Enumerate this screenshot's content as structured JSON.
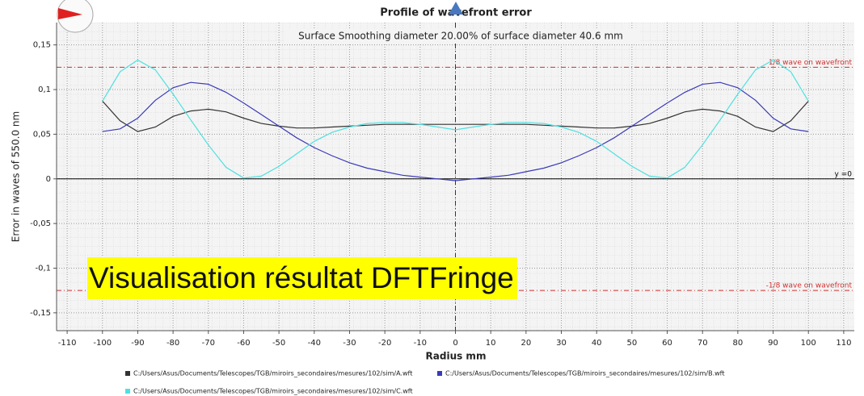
{
  "chart_data": {
    "type": "line",
    "title": "Profile of wavefront error",
    "subtitle": "Surface Smoothing diameter  20.00% of surface diameter   40.6 mm",
    "x_label": "Radius mm",
    "y_label": "Error in waves of  550.0 nm",
    "overlay_text": "Visualisation résultat DFTFringe",
    "x": [
      -100,
      -95,
      -90,
      -85,
      -80,
      -75,
      -70,
      -65,
      -60,
      -55,
      -50,
      -45,
      -40,
      -35,
      -30,
      -25,
      -20,
      -15,
      -10,
      -5,
      0,
      5,
      10,
      15,
      20,
      25,
      30,
      35,
      40,
      45,
      50,
      55,
      60,
      65,
      70,
      75,
      80,
      85,
      90,
      95,
      100
    ],
    "series": [
      {
        "name": "C:/Users/Asus/Documents/Telescopes/TGB/miroirs_secondaires/mesures/102/sim/A.wft",
        "color": "#333333",
        "values": [
          0.087,
          0.065,
          0.053,
          0.058,
          0.07,
          0.076,
          0.078,
          0.075,
          0.068,
          0.062,
          0.059,
          0.057,
          0.057,
          0.058,
          0.059,
          0.06,
          0.061,
          0.061,
          0.061,
          0.061,
          0.061,
          0.061,
          0.061,
          0.061,
          0.061,
          0.06,
          0.059,
          0.058,
          0.057,
          0.057,
          0.059,
          0.062,
          0.068,
          0.075,
          0.078,
          0.076,
          0.07,
          0.058,
          0.053,
          0.065,
          0.087
        ]
      },
      {
        "name": "C:/Users/Asus/Documents/Telescopes/TGB/miroirs_secondaires/mesures/102/sim/B.wft",
        "color": "#3a3ab8",
        "values": [
          0.053,
          0.056,
          0.068,
          0.088,
          0.102,
          0.108,
          0.106,
          0.097,
          0.085,
          0.072,
          0.059,
          0.046,
          0.035,
          0.026,
          0.018,
          0.012,
          0.008,
          0.004,
          0.002,
          0.0,
          -0.002,
          0.0,
          0.002,
          0.004,
          0.008,
          0.012,
          0.018,
          0.026,
          0.035,
          0.046,
          0.059,
          0.072,
          0.085,
          0.097,
          0.106,
          0.108,
          0.102,
          0.088,
          0.068,
          0.056,
          0.053
        ]
      },
      {
        "name": "C:/Users/Asus/Documents/Telescopes/TGB/miroirs_secondaires/mesures/102/sim/C.wft",
        "color": "#4fe0e0",
        "values": [
          0.087,
          0.12,
          0.133,
          0.122,
          0.095,
          0.066,
          0.038,
          0.013,
          0.001,
          0.003,
          0.014,
          0.028,
          0.042,
          0.052,
          0.058,
          0.062,
          0.063,
          0.063,
          0.061,
          0.058,
          0.055,
          0.058,
          0.061,
          0.063,
          0.063,
          0.062,
          0.058,
          0.052,
          0.042,
          0.028,
          0.014,
          0.003,
          0.001,
          0.013,
          0.038,
          0.066,
          0.095,
          0.122,
          0.133,
          0.12,
          0.087
        ]
      }
    ],
    "reference_lines": [
      {
        "value": 0.125,
        "label": "1/8 wave on wavefront",
        "color": "#d03030"
      },
      {
        "value": -0.125,
        "label": "-1/8 wave on wavefront",
        "color": "#d03030"
      },
      {
        "value": 0,
        "label": "y =0",
        "color": "#000000"
      }
    ],
    "xlim": [
      -113,
      113
    ],
    "ylim": [
      -0.17,
      0.175
    ],
    "xticks": [
      -110,
      -100,
      -90,
      -80,
      -70,
      -60,
      -50,
      -40,
      -30,
      -20,
      -10,
      0,
      10,
      20,
      30,
      40,
      50,
      60,
      70,
      80,
      90,
      100,
      110
    ],
    "yticks": [
      {
        "value": -0.15,
        "label": "-0,15"
      },
      {
        "value": -0.1,
        "label": "-0,1"
      },
      {
        "value": -0.05,
        "label": "-0,05"
      },
      0,
      {
        "value": 0.05,
        "label": "0,05"
      },
      {
        "value": 0.1,
        "label": "0,1"
      },
      {
        "value": 0.15,
        "label": "0,15"
      }
    ],
    "grid": true
  }
}
